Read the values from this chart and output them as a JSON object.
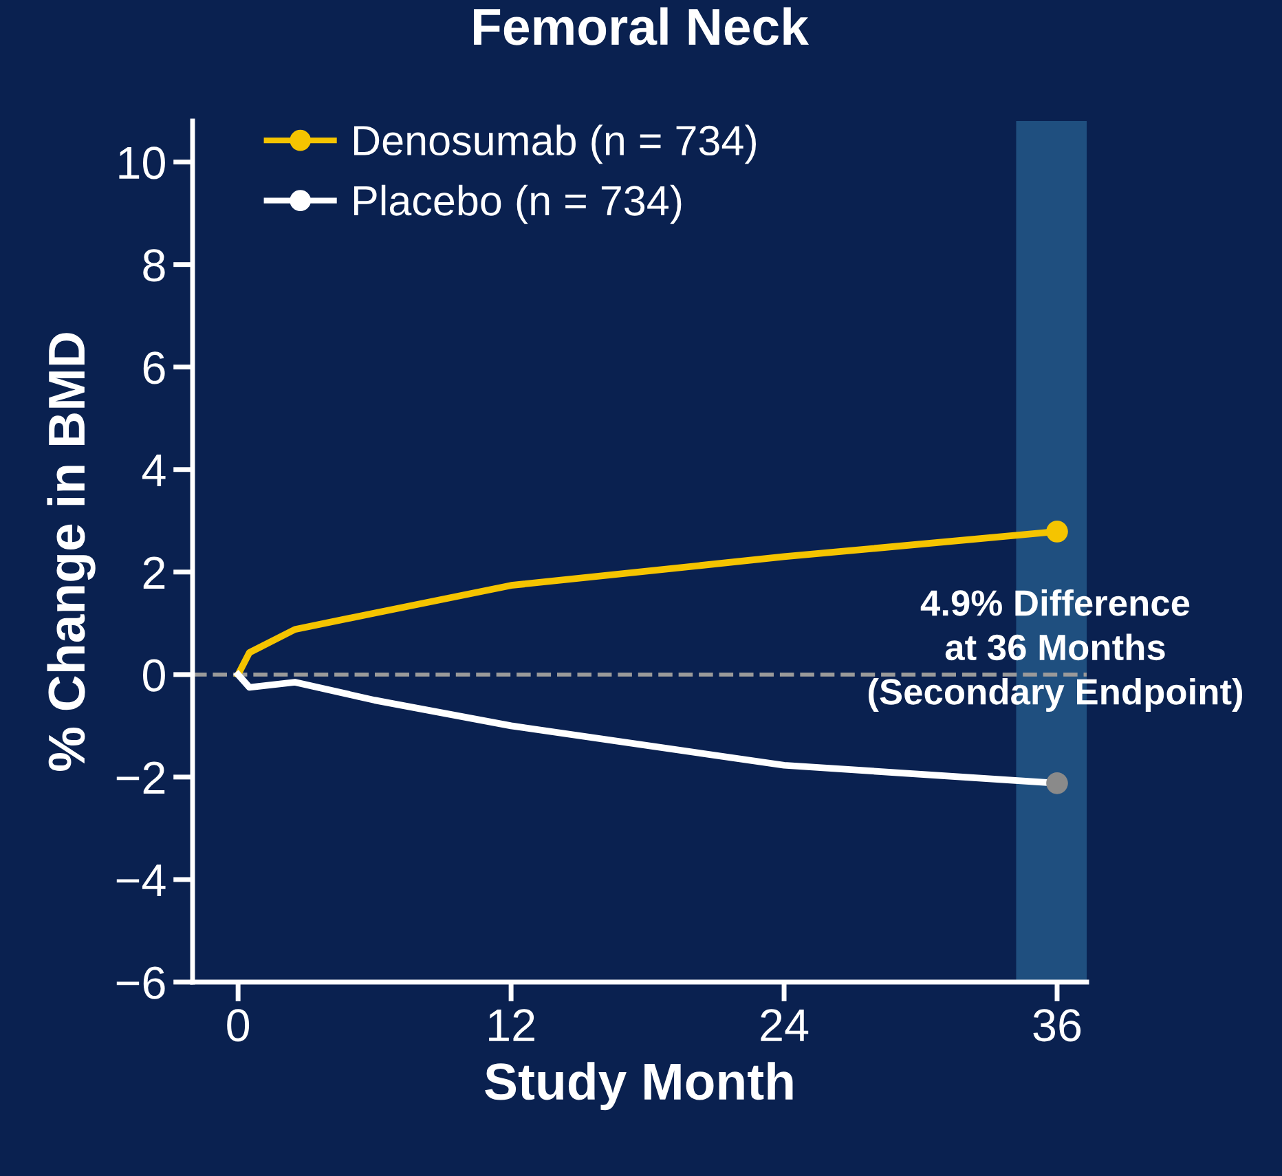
{
  "chart_data": {
    "type": "line",
    "title": "Femoral Neck",
    "xlabel": "Study Month",
    "ylabel": "% Change in BMD",
    "series": [
      {
        "name": "Denosumab (n = 734)",
        "color": "#f5c400",
        "x": [
          0,
          0.5,
          2.5,
          6,
          12,
          24,
          36
        ],
        "values": [
          0,
          0.43,
          0.88,
          1.2,
          1.74,
          2.3,
          2.79
        ]
      },
      {
        "name": "Placebo (n = 734)",
        "color": "#ffffff",
        "x": [
          0,
          0.5,
          2.5,
          6,
          12,
          24,
          36
        ],
        "values": [
          0,
          -0.25,
          -0.15,
          -0.5,
          -1.0,
          -1.77,
          -2.12
        ]
      },
      {
        "type": "scatter",
        "x": [
          36,
          36
        ],
        "values": [
          2.79,
          -2.12
        ],
        "colors": [
          "#f5c400",
          "#8a8a8a"
        ]
      }
    ],
    "xlim": [
      -2,
      37.3
    ],
    "ylim": [
      -6,
      10.8
    ],
    "xticks": [
      0,
      12,
      24,
      36
    ],
    "yticks": [
      -6,
      -4,
      -2,
      0,
      2,
      4,
      6,
      8,
      10
    ],
    "ref_lines": [
      {
        "axis": "y",
        "value": 0,
        "color": "#9a9a9a",
        "line_style": "dashed"
      }
    ],
    "bands": [
      {
        "axis": "x",
        "from": 34.2,
        "to": 37.6,
        "color": "#1f4f7f"
      }
    ],
    "annotations": [
      "4.9% Difference\nat 36 Months\n(Secondary Endpoint)"
    ],
    "legend": "top left",
    "grid": false,
    "line_style": "solid"
  }
}
